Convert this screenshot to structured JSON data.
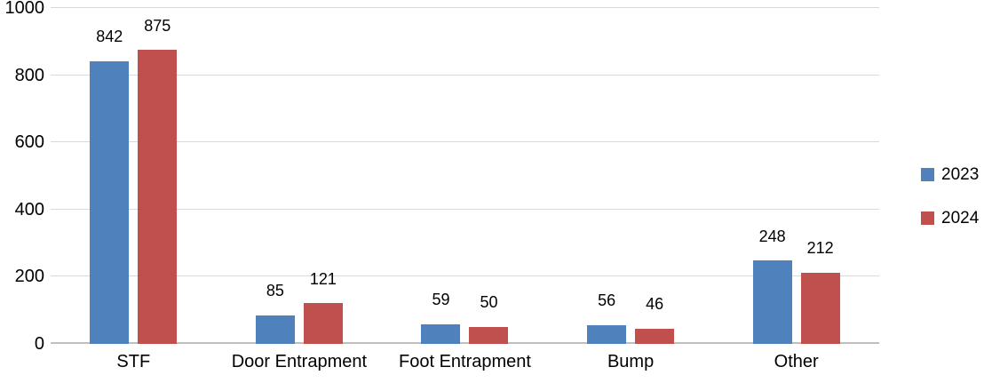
{
  "chart_data": {
    "type": "bar",
    "title": "",
    "xlabel": "",
    "ylabel": "",
    "categories": [
      "STF",
      "Door Entrapment",
      "Foot Entrapment",
      "Bump",
      "Other"
    ],
    "series": [
      {
        "name": "2023",
        "color": "#4F81BD",
        "values": [
          842,
          85,
          59,
          56,
          248
        ]
      },
      {
        "name": "2024",
        "color": "#C0504D",
        "values": [
          875,
          121,
          50,
          46,
          212
        ]
      }
    ],
    "ylim": [
      0,
      1000
    ],
    "yticks": [
      0,
      200,
      400,
      600,
      800,
      1000
    ],
    "grid": true,
    "value_labels": true,
    "legend_position": "right"
  },
  "legend": {
    "items": [
      {
        "label": "2023",
        "swatch_color": "#4F81BD"
      },
      {
        "label": "2024",
        "swatch_color": "#C0504D"
      }
    ]
  },
  "colors": {
    "series_2023": "#4F81BD",
    "series_2024": "#C0504D",
    "gridline": "#D9D9D9",
    "axis_line": "#BFBFBF",
    "text": "#000000",
    "background": "#FFFFFF"
  }
}
